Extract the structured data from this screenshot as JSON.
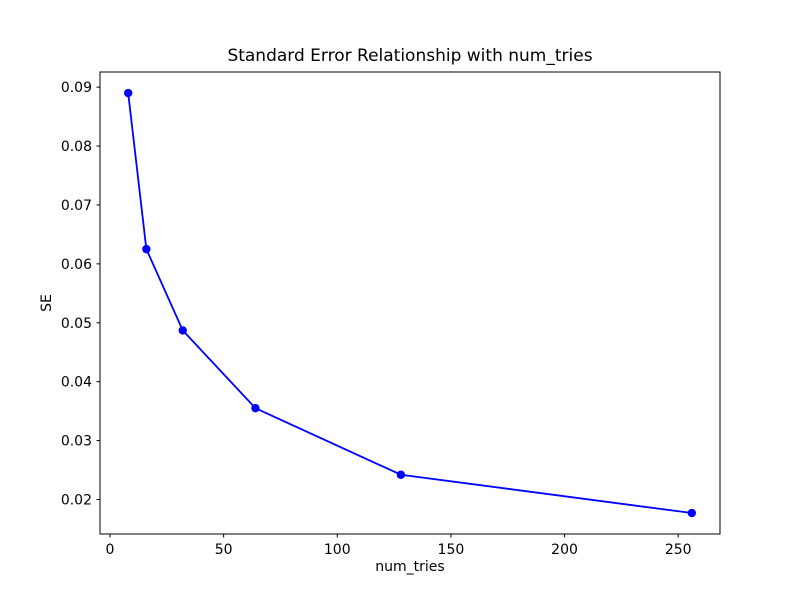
{
  "figure": {
    "background": "#ffffff"
  },
  "chart_data": {
    "type": "line",
    "title": "Standard Error Relationship with num_tries",
    "xlabel": "num_tries",
    "ylabel": "SE",
    "x": [
      8,
      16,
      32,
      64,
      128,
      256
    ],
    "y": [
      0.089,
      0.0625,
      0.0487,
      0.0355,
      0.0242,
      0.0177
    ],
    "series": [
      {
        "name": "SE",
        "x": [
          8,
          16,
          32,
          64,
          128,
          256
        ],
        "values": [
          0.089,
          0.0625,
          0.0487,
          0.0355,
          0.0242,
          0.0177
        ]
      }
    ],
    "xlim": [
      -4.4,
      268.4
    ],
    "ylim": [
      0.01414,
      0.09257
    ],
    "xticks": {
      "values": [
        0,
        50,
        100,
        150,
        200,
        250
      ],
      "labels": [
        "0",
        "50",
        "100",
        "150",
        "200",
        "250"
      ]
    },
    "yticks": {
      "values": [
        0.02,
        0.03,
        0.04,
        0.05,
        0.06,
        0.07,
        0.08,
        0.09
      ],
      "labels": [
        "0.02",
        "0.03",
        "0.04",
        "0.05",
        "0.06",
        "0.07",
        "0.08",
        "0.09"
      ]
    },
    "line_color": "#0000ff",
    "axis_color": "#000000",
    "marker": "circle",
    "marker_size": 4.2,
    "line_width": 1.8,
    "grid": false,
    "legend": "none"
  }
}
